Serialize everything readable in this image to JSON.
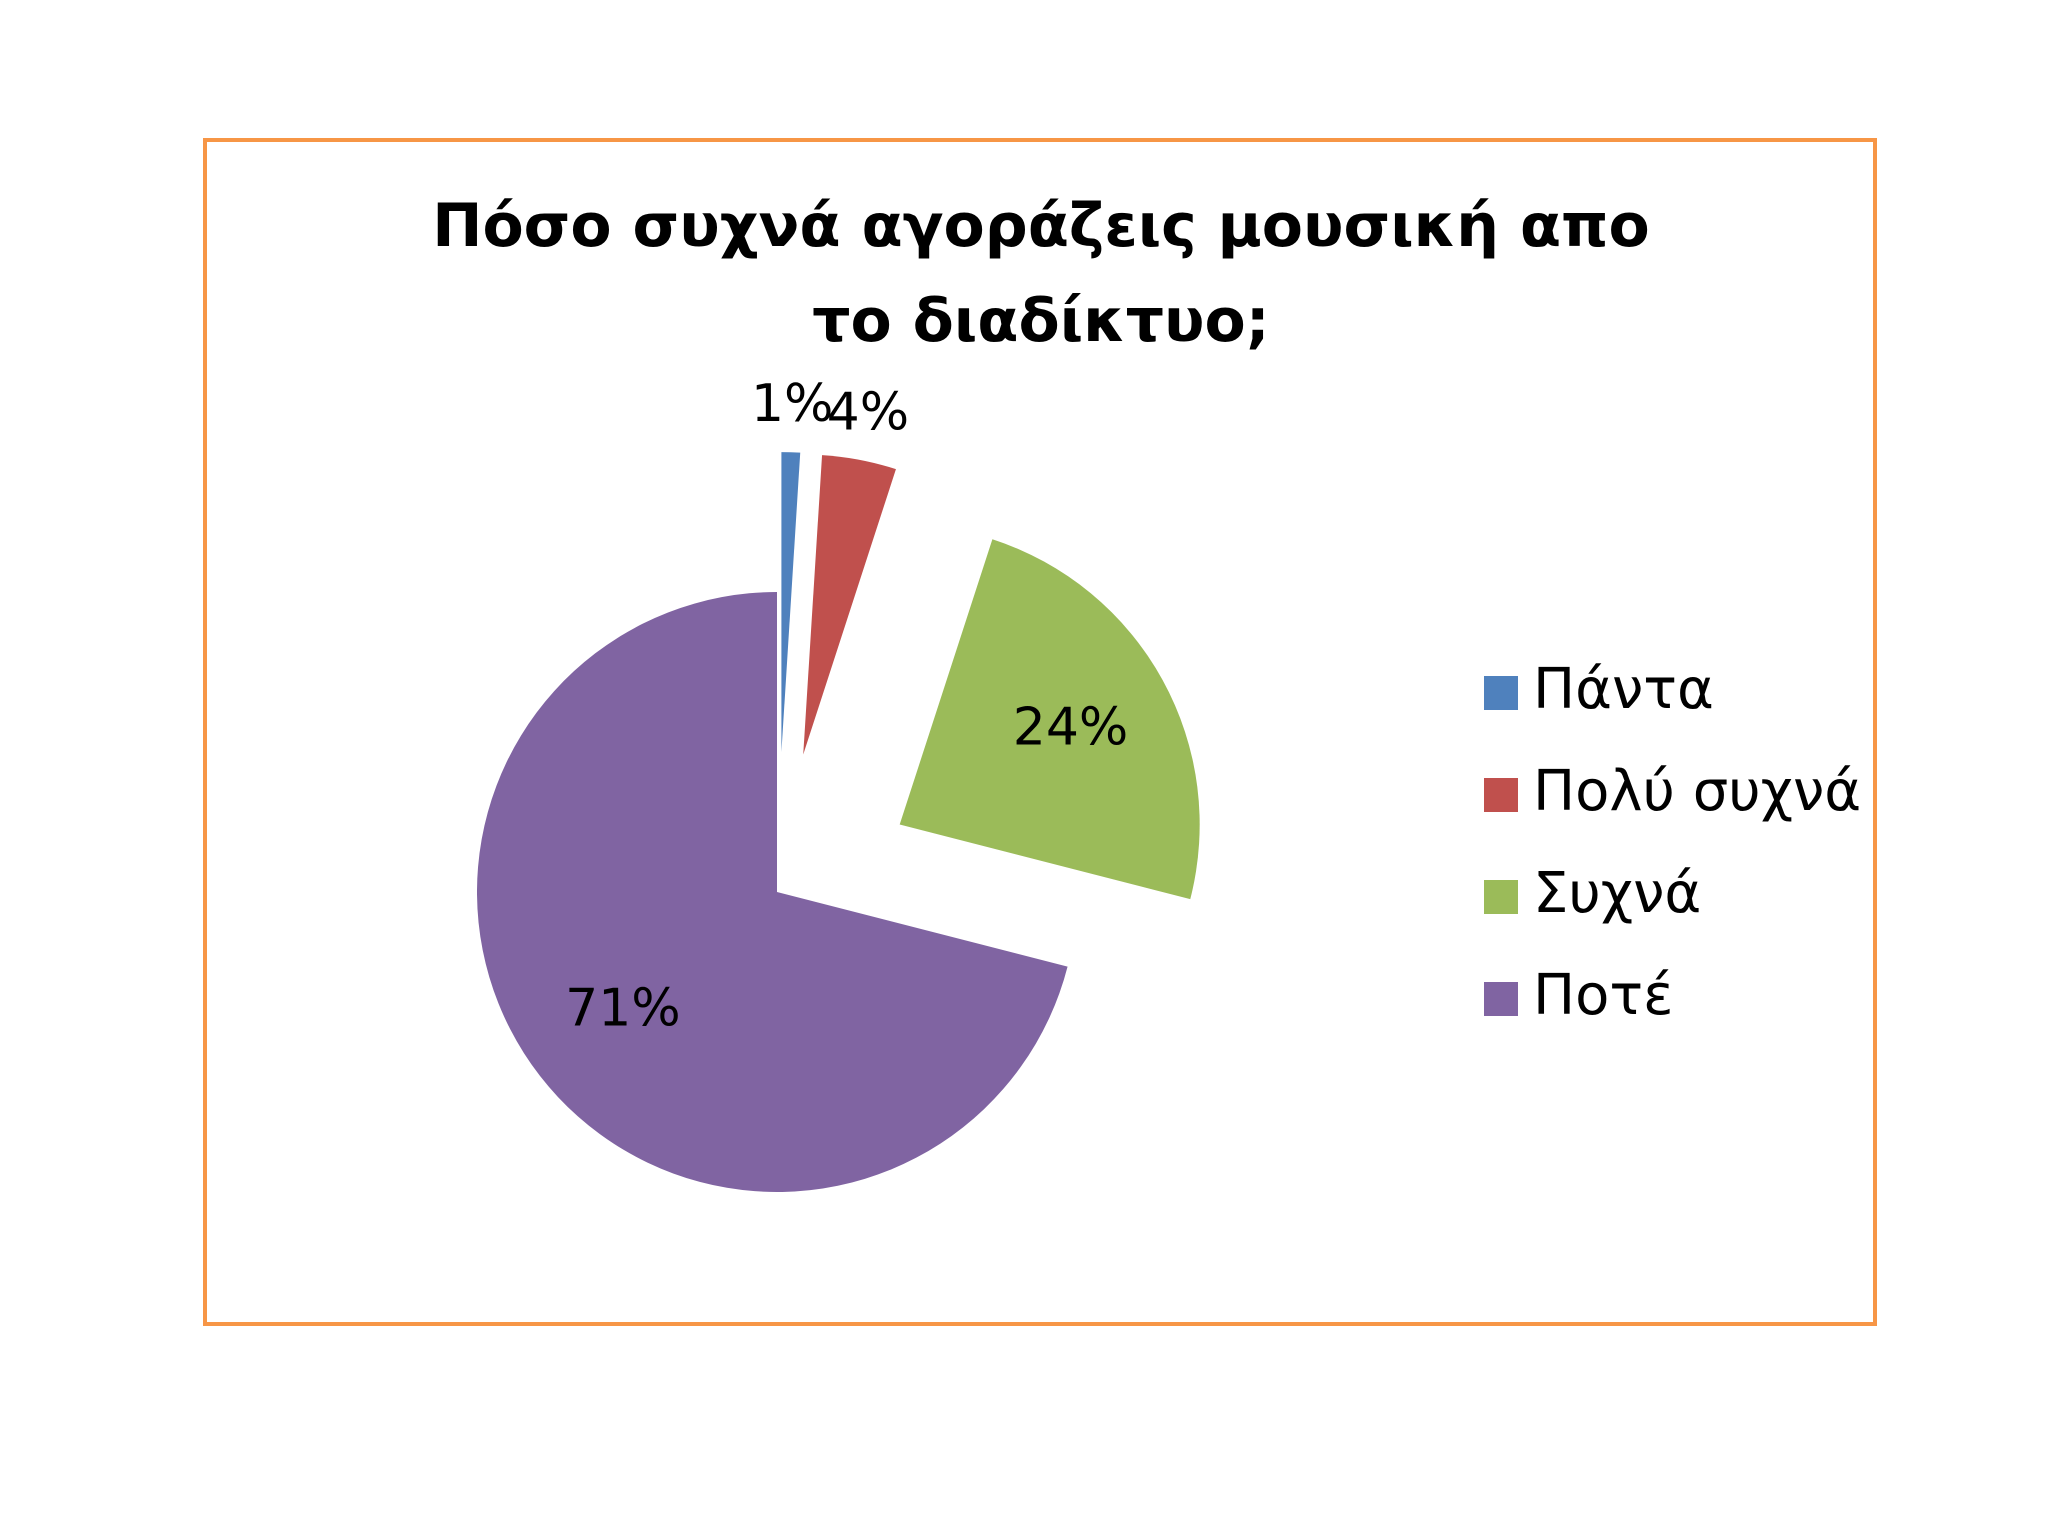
{
  "chart_data": {
    "type": "pie",
    "title": "Πόσο συχνά αγοράζεις μουσική απο το διαδίκτυο;",
    "categories": [
      "Πάντα",
      "Πολύ συχνά",
      "Συχνά",
      "Ποτέ"
    ],
    "values": [
      1,
      4,
      24,
      71
    ],
    "value_labels": [
      "1%",
      "4%",
      "24%",
      "71%"
    ],
    "colors": [
      "#4f81bd",
      "#c0504d",
      "#9bbb59",
      "#8064a2"
    ],
    "exploded": [
      true,
      true,
      true,
      false
    ],
    "legend": "right"
  }
}
